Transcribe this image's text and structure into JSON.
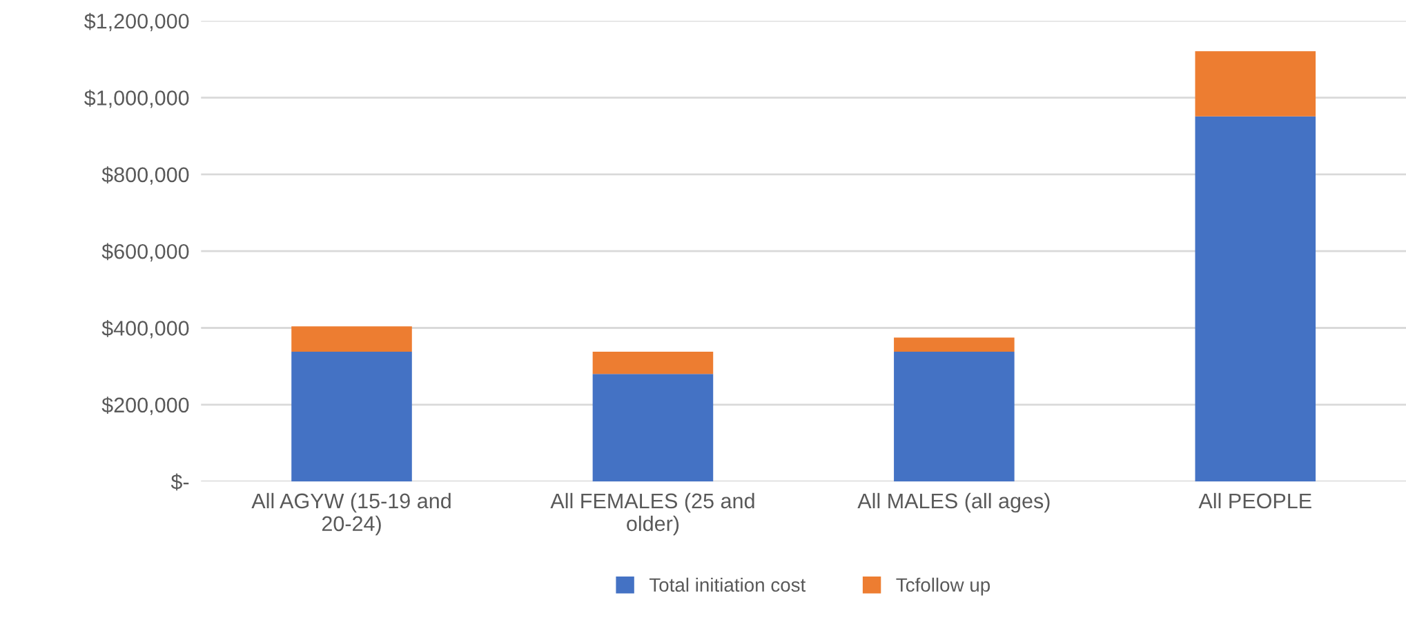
{
  "chart_data": {
    "type": "bar",
    "stacked": true,
    "categories": [
      "All AGYW (15-19 and 20-24)",
      "All FEMALES (25 and older)",
      "All MALES (all ages)",
      "All PEOPLE"
    ],
    "series": [
      {
        "name": "Total initiation cost",
        "color": "#4472c4",
        "values": [
          338000,
          280000,
          338000,
          951000
        ]
      },
      {
        "name": "Tcfollow up",
        "color": "#ed7d31",
        "values": [
          66000,
          58000,
          37000,
          170000
        ]
      }
    ],
    "ylim": [
      0,
      1200000
    ],
    "yticks": [
      {
        "value": 0,
        "label": "$-"
      },
      {
        "value": 200000,
        "label": "$200,000"
      },
      {
        "value": 400000,
        "label": "$400,000"
      },
      {
        "value": 600000,
        "label": "$600,000"
      },
      {
        "value": 800000,
        "label": "$800,000"
      },
      {
        "value": 1000000,
        "label": "$1,000,000"
      },
      {
        "value": 1200000,
        "label": "$1,200,000"
      }
    ],
    "grid": "y",
    "legend": "bottom"
  }
}
